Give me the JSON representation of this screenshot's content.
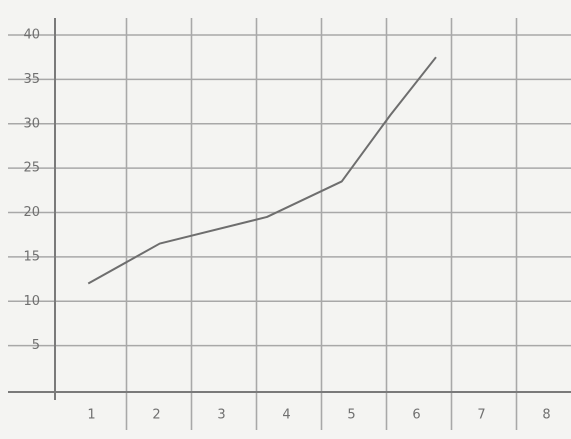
{
  "chart_data": {
    "type": "line",
    "series": [
      {
        "color": "#6e6e6e",
        "x": [
          0.95,
          2.05,
          3.7,
          4.85,
          5.6,
          6.3
        ],
        "values": [
          12,
          16.5,
          19.5,
          23.5,
          31,
          37.5
        ]
      }
    ],
    "xlim": [
      0.5,
      8.5
    ],
    "xticks": [
      1,
      2,
      3,
      4,
      5,
      6,
      7,
      8
    ],
    "ylim": [
      0,
      40
    ],
    "yticks": [
      5,
      10,
      15,
      20,
      25,
      30,
      35,
      40
    ],
    "grid": true
  }
}
